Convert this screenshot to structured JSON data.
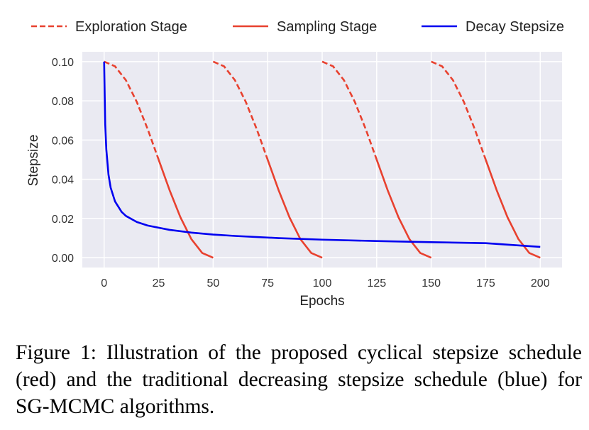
{
  "chart_data": {
    "type": "line",
    "xlabel": "Epochs",
    "ylabel": "Stepsize",
    "xlim": [
      -10,
      210
    ],
    "ylim": [
      -0.005,
      0.105
    ],
    "xticks": [
      "0",
      "25",
      "50",
      "75",
      "100",
      "125",
      "150",
      "175",
      "200"
    ],
    "yticks": [
      "0.00",
      "0.02",
      "0.04",
      "0.06",
      "0.08",
      "0.10"
    ],
    "grid": true,
    "legend_position": "top",
    "series": [
      {
        "name": "Exploration Stage",
        "color": "#e8412f",
        "style": "dashed",
        "segments": [
          {
            "x": [
              0,
              5,
              10,
              15,
              20,
              25
            ],
            "y": [
              0.1,
              0.0976,
              0.0905,
              0.0794,
              0.0655,
              0.05
            ]
          },
          {
            "x": [
              50,
              55,
              60,
              65,
              70,
              75
            ],
            "y": [
              0.1,
              0.0976,
              0.0905,
              0.0794,
              0.0655,
              0.05
            ]
          },
          {
            "x": [
              100,
              105,
              110,
              115,
              120,
              125
            ],
            "y": [
              0.1,
              0.0976,
              0.0905,
              0.0794,
              0.0655,
              0.05
            ]
          },
          {
            "x": [
              150,
              155,
              160,
              165,
              170,
              175
            ],
            "y": [
              0.1,
              0.0976,
              0.0905,
              0.0794,
              0.0655,
              0.05
            ]
          }
        ]
      },
      {
        "name": "Sampling Stage",
        "color": "#e8412f",
        "style": "solid",
        "segments": [
          {
            "x": [
              25,
              30,
              35,
              40,
              45,
              50
            ],
            "y": [
              0.05,
              0.0345,
              0.0206,
              0.0095,
              0.0024,
              0.0
            ]
          },
          {
            "x": [
              75,
              80,
              85,
              90,
              95,
              100
            ],
            "y": [
              0.05,
              0.0345,
              0.0206,
              0.0095,
              0.0024,
              0.0
            ]
          },
          {
            "x": [
              125,
              130,
              135,
              140,
              145,
              150
            ],
            "y": [
              0.05,
              0.0345,
              0.0206,
              0.0095,
              0.0024,
              0.0
            ]
          },
          {
            "x": [
              175,
              180,
              185,
              190,
              195,
              200
            ],
            "y": [
              0.05,
              0.0345,
              0.0206,
              0.0095,
              0.0024,
              0.0
            ]
          }
        ]
      },
      {
        "name": "Decay Stepsize",
        "color": "#0000f0",
        "style": "solid",
        "segments": [
          {
            "x": [
              0,
              0.5,
              1,
              2,
              3,
              5,
              8,
              10,
              15,
              20,
              30,
              40,
              50,
              60,
              80,
              100,
              125,
              150,
              175,
              200
            ],
            "y": [
              0.1,
              0.068,
              0.0553,
              0.0424,
              0.0357,
              0.0287,
              0.0234,
              0.0213,
              0.0182,
              0.0164,
              0.0142,
              0.0128,
              0.0118,
              0.0111,
              0.01,
              0.0092,
              0.0085,
              0.0079,
              0.0074,
              0.0055
            ]
          }
        ]
      }
    ]
  },
  "caption": "Figure 1:  Illustration of the proposed cyclical stepsize schedule (red) and the traditional decreasing stepsize schedule (blue) for SG-MCMC algorithms."
}
